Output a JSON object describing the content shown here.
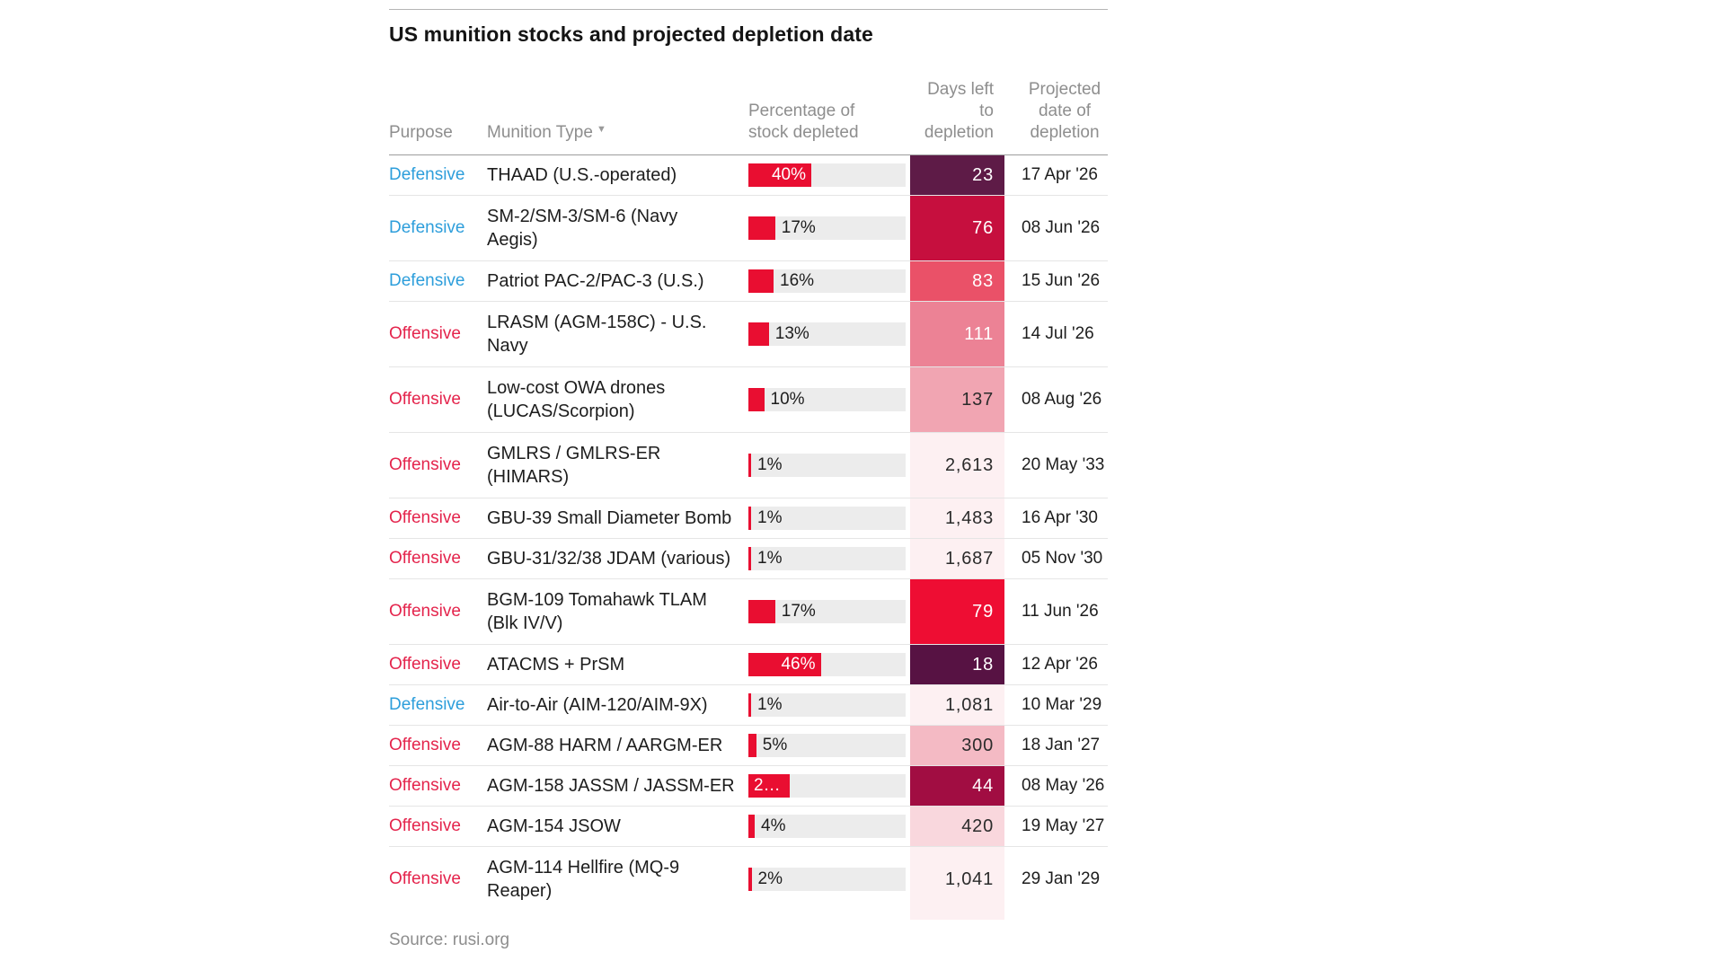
{
  "header": {
    "title": "US munition stocks and projected depletion date"
  },
  "source_note": "Source: rusi.org",
  "columns": {
    "purpose": "Purpose",
    "munition": "Munition Type",
    "sort_icon": "▼",
    "percentage": "Percentage of\nstock depleted",
    "days_left": "Days left\nto\ndepletion",
    "projected": "Projected\ndate of\ndepletion"
  },
  "colors": {
    "defensive_text": "#2d9edb",
    "offensive_text": "#e4244c",
    "bar_fill": "#e90e31",
    "bar_track": "#ececec",
    "heat_light_cell": "#fdf0f2",
    "header_text": "#8e8e8e",
    "row_separator": "#e5e5e5"
  },
  "chart_data": {
    "type": "table",
    "title": "US munition stocks and projected depletion date",
    "source": "Source: rusi.org",
    "columns": [
      "Purpose",
      "Munition Type",
      "Percentage of stock depleted",
      "Days left to depletion",
      "Projected date of depletion"
    ],
    "legend_position": "none",
    "grid": "horizontal-row-separators",
    "rows": [
      {
        "purpose": "Defensive",
        "munition": "THAAD (U.S.-operated)",
        "munition_display": "THAAD (U.S.-operated)",
        "two_line": false,
        "pct": 40,
        "pct_fill": 40,
        "pct_display": "40%",
        "pct_label_inside": true,
        "days": 23,
        "days_display": "23",
        "days_cell_bg": "#5e1b47",
        "days_cell_fg": "#ffffff",
        "projected_date": "17 Apr '26"
      },
      {
        "purpose": "Defensive",
        "munition": "SM-2/SM-3/SM-6 (Navy Aegis)",
        "munition_display": "SM-2/SM-3/SM-6 (Navy\nAegis)",
        "two_line": true,
        "pct": 17,
        "pct_fill": 17,
        "pct_display": "17%",
        "pct_label_inside": false,
        "days": 76,
        "days_display": "76",
        "days_cell_bg": "#c60f3e",
        "days_cell_fg": "#ffffff",
        "projected_date": "08 Jun '26"
      },
      {
        "purpose": "Defensive",
        "munition": "Patriot PAC-2/PAC-3 (U.S.)",
        "munition_display": "Patriot PAC-2/PAC-3 (U.S.)",
        "two_line": false,
        "pct": 16,
        "pct_fill": 16,
        "pct_display": "16%",
        "pct_label_inside": false,
        "days": 83,
        "days_display": "83",
        "days_cell_bg": "#ea5168",
        "days_cell_fg": "#ffffff",
        "projected_date": "15 Jun '26"
      },
      {
        "purpose": "Offensive",
        "munition": "LRASM (AGM-158C) - U.S. Navy",
        "munition_display": "LRASM (AGM-158C) - U.S.\nNavy",
        "two_line": true,
        "pct": 13,
        "pct_fill": 13,
        "pct_display": "13%",
        "pct_label_inside": false,
        "days": 111,
        "days_display": "111",
        "days_cell_bg": "#ec8295",
        "days_cell_fg": "#ffffff",
        "projected_date": "14 Jul '26"
      },
      {
        "purpose": "Offensive",
        "munition": "Low-cost OWA drones (LUCAS/Scorpion)",
        "munition_display": "Low-cost OWA drones\n(LUCAS/Scorpion)",
        "two_line": true,
        "pct": 10,
        "pct_fill": 10,
        "pct_display": "10%",
        "pct_label_inside": false,
        "days": 137,
        "days_display": "137",
        "days_cell_bg": "#f1a5b2",
        "days_cell_fg": "#2b2b2b",
        "projected_date": "08 Aug '26"
      },
      {
        "purpose": "Offensive",
        "munition": "GMLRS / GMLRS-ER (HIMARS)",
        "munition_display": "GMLRS / GMLRS-ER\n(HIMARS)",
        "two_line": true,
        "pct": 1,
        "pct_fill": 1,
        "pct_display": "1%",
        "pct_label_inside": false,
        "days": 2613,
        "days_display": "2,613",
        "days_cell_bg": "#fdf0f2",
        "days_cell_fg": "#2b2b2b",
        "projected_date": "20 May '33"
      },
      {
        "purpose": "Offensive",
        "munition": "GBU-39 Small Diameter Bomb",
        "munition_display": "GBU-39 Small Diameter Bomb",
        "two_line": false,
        "pct": 1,
        "pct_fill": 1,
        "pct_display": "1%",
        "pct_label_inside": false,
        "days": 1483,
        "days_display": "1,483",
        "days_cell_bg": "#fdf0f2",
        "days_cell_fg": "#2b2b2b",
        "projected_date": "16 Apr '30"
      },
      {
        "purpose": "Offensive",
        "munition": "GBU-31/32/38 JDAM (various)",
        "munition_display": "GBU-31/32/38 JDAM (various)",
        "two_line": false,
        "pct": 1,
        "pct_fill": 1,
        "pct_display": "1%",
        "pct_label_inside": false,
        "days": 1687,
        "days_display": "1,687",
        "days_cell_bg": "#fdf0f2",
        "days_cell_fg": "#2b2b2b",
        "projected_date": "05 Nov '30"
      },
      {
        "purpose": "Offensive",
        "munition": "BGM-109 Tomahawk TLAM (Blk IV/V)",
        "munition_display": "BGM-109 Tomahawk TLAM\n(Blk IV/V)",
        "two_line": true,
        "pct": 17,
        "pct_fill": 17,
        "pct_display": "17%",
        "pct_label_inside": false,
        "days": 79,
        "days_display": "79",
        "days_cell_bg": "#ee0d33",
        "days_cell_fg": "#ffffff",
        "projected_date": "11 Jun '26"
      },
      {
        "purpose": "Offensive",
        "munition": "ATACMS + PrSM",
        "munition_display": "ATACMS + PrSM",
        "two_line": false,
        "pct": 46,
        "pct_fill": 46,
        "pct_display": "46%",
        "pct_label_inside": true,
        "days": 18,
        "days_display": "18",
        "days_cell_bg": "#571243",
        "days_cell_fg": "#ffffff",
        "projected_date": "12 Apr '26"
      },
      {
        "purpose": "Defensive",
        "munition": "Air-to-Air (AIM-120/AIM-9X)",
        "munition_display": "Air-to-Air (AIM-120/AIM-9X)",
        "two_line": false,
        "pct": 1,
        "pct_fill": 1,
        "pct_display": "1%",
        "pct_label_inside": false,
        "days": 1081,
        "days_display": "1,081",
        "days_cell_bg": "#fdf0f2",
        "days_cell_fg": "#2b2b2b",
        "projected_date": "10 Mar '29"
      },
      {
        "purpose": "Offensive",
        "munition": "AGM-88 HARM / AARGM-ER",
        "munition_display": "AGM-88 HARM / AARGM-ER",
        "two_line": false,
        "pct": 5,
        "pct_fill": 5,
        "pct_display": "5%",
        "pct_label_inside": false,
        "days": 300,
        "days_display": "300",
        "days_cell_bg": "#f4bac4",
        "days_cell_fg": "#2b2b2b",
        "projected_date": "18 Jan '27"
      },
      {
        "purpose": "Offensive",
        "munition": "AGM-158 JASSM / JASSM-ER",
        "munition_display": "AGM-158 JASSM / JASSM-ER",
        "two_line": false,
        "pct": 26,
        "pct_fill": 26,
        "pct_display": "2…",
        "pct_label_inside": true,
        "pct_label_align": "left",
        "days": 44,
        "days_display": "44",
        "days_cell_bg": "#a10d42",
        "days_cell_fg": "#ffffff",
        "projected_date": "08 May '26"
      },
      {
        "purpose": "Offensive",
        "munition": "AGM-154 JSOW",
        "munition_display": "AGM-154 JSOW",
        "two_line": false,
        "pct": 4,
        "pct_fill": 4,
        "pct_display": "4%",
        "pct_label_inside": false,
        "days": 420,
        "days_display": "420",
        "days_cell_bg": "#f9d7dd",
        "days_cell_fg": "#2b2b2b",
        "projected_date": "19 May '27"
      },
      {
        "purpose": "Offensive",
        "munition": "AGM-114 Hellfire (MQ-9 Reaper)",
        "munition_display": "AGM-114 Hellfire (MQ-9\nReaper)",
        "two_line": true,
        "pct": 2,
        "pct_fill": 2,
        "pct_display": "2%",
        "pct_label_inside": false,
        "days": 1041,
        "days_display": "1,041",
        "days_cell_bg": "#fdf0f2",
        "days_cell_fg": "#2b2b2b",
        "projected_date": "29 Jan '29"
      }
    ]
  }
}
